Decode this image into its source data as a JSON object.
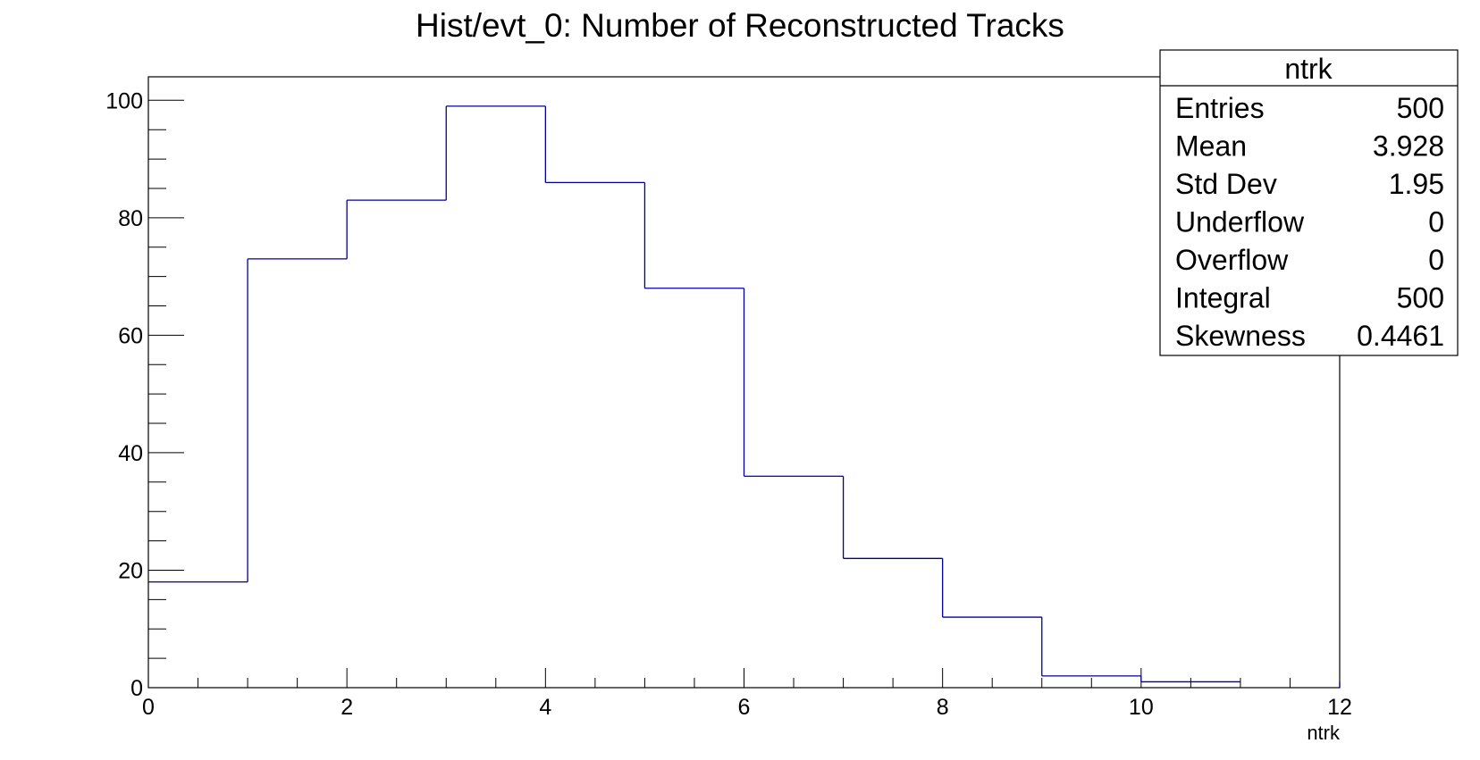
{
  "chart_data": {
    "type": "histogram",
    "title": "Hist/evt_0: Number of Reconstructed Tracks",
    "xlabel": "ntrk",
    "ylabel": "",
    "xlim": [
      0,
      12
    ],
    "ylim": [
      0,
      104
    ],
    "bin_edges": [
      0,
      1,
      2,
      3,
      4,
      5,
      6,
      7,
      8,
      9,
      10,
      11
    ],
    "values": [
      18,
      73,
      83,
      99,
      86,
      68,
      36,
      22,
      12,
      2,
      1
    ],
    "x_ticks": [
      0,
      2,
      4,
      6,
      8,
      10,
      12
    ],
    "y_ticks": [
      0,
      20,
      40,
      60,
      80,
      100
    ],
    "line_color": "#000099",
    "grid": false,
    "legend": "none",
    "stats_box": {
      "position": "top-right",
      "name": "ntrk",
      "rows": [
        {
          "label": "Entries",
          "value": "500"
        },
        {
          "label": "Mean",
          "value": "3.928"
        },
        {
          "label": "Std Dev",
          "value": "1.95"
        },
        {
          "label": "Underflow",
          "value": "0"
        },
        {
          "label": "Overflow",
          "value": "0"
        },
        {
          "label": "Integral",
          "value": "500"
        },
        {
          "label": "Skewness",
          "value": "0.4461"
        }
      ]
    }
  }
}
